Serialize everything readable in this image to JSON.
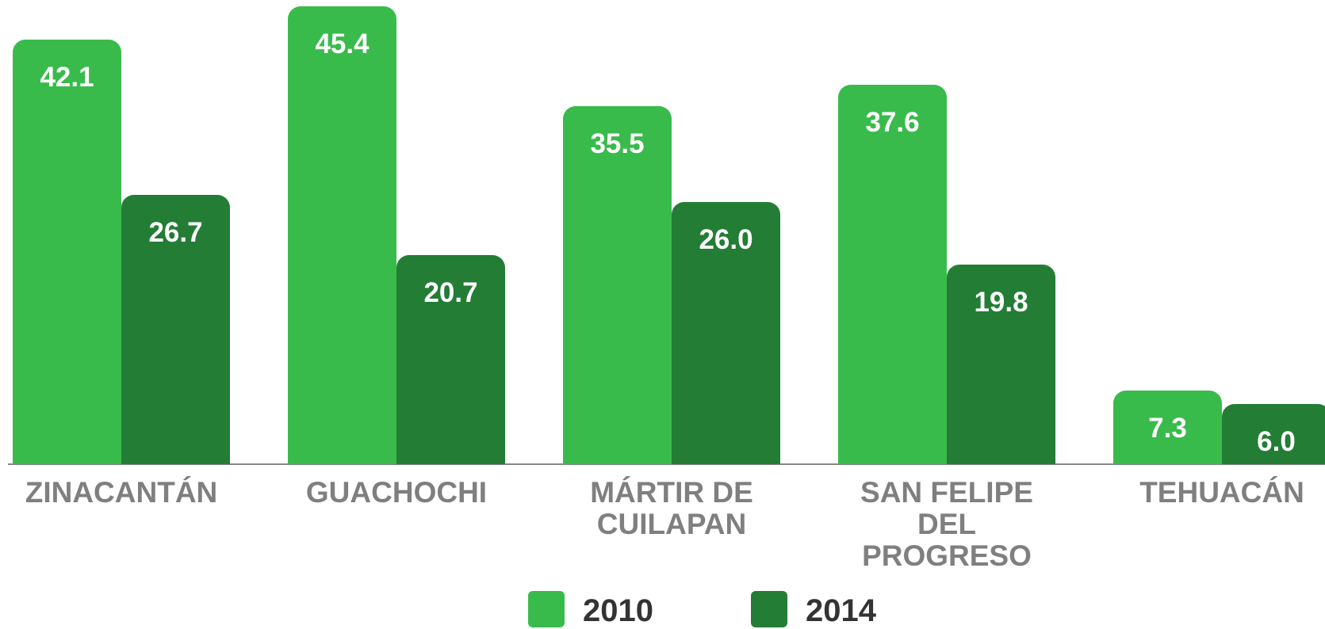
{
  "chart_data": {
    "type": "bar",
    "categories": [
      "ZINACANTÁN",
      "GUACHOCHI",
      "MÁRTIR DE CUILAPAN",
      "SAN FELIPE DEL PROGRESO",
      "TEHUACÁN"
    ],
    "series": [
      {
        "name": "2010",
        "color": "#39bb4c",
        "values": [
          42.1,
          45.4,
          35.5,
          37.6,
          7.3
        ],
        "value_labels": [
          "42.1",
          "45.4",
          "35.5",
          "37.6",
          "7.3"
        ]
      },
      {
        "name": "2014",
        "color": "#237d35",
        "values": [
          26.7,
          20.7,
          26.0,
          19.8,
          6.0
        ],
        "value_labels": [
          "26.7",
          "20.7",
          "26.0",
          "19.8",
          "6.0"
        ]
      }
    ],
    "ylim": [
      0,
      46
    ]
  }
}
